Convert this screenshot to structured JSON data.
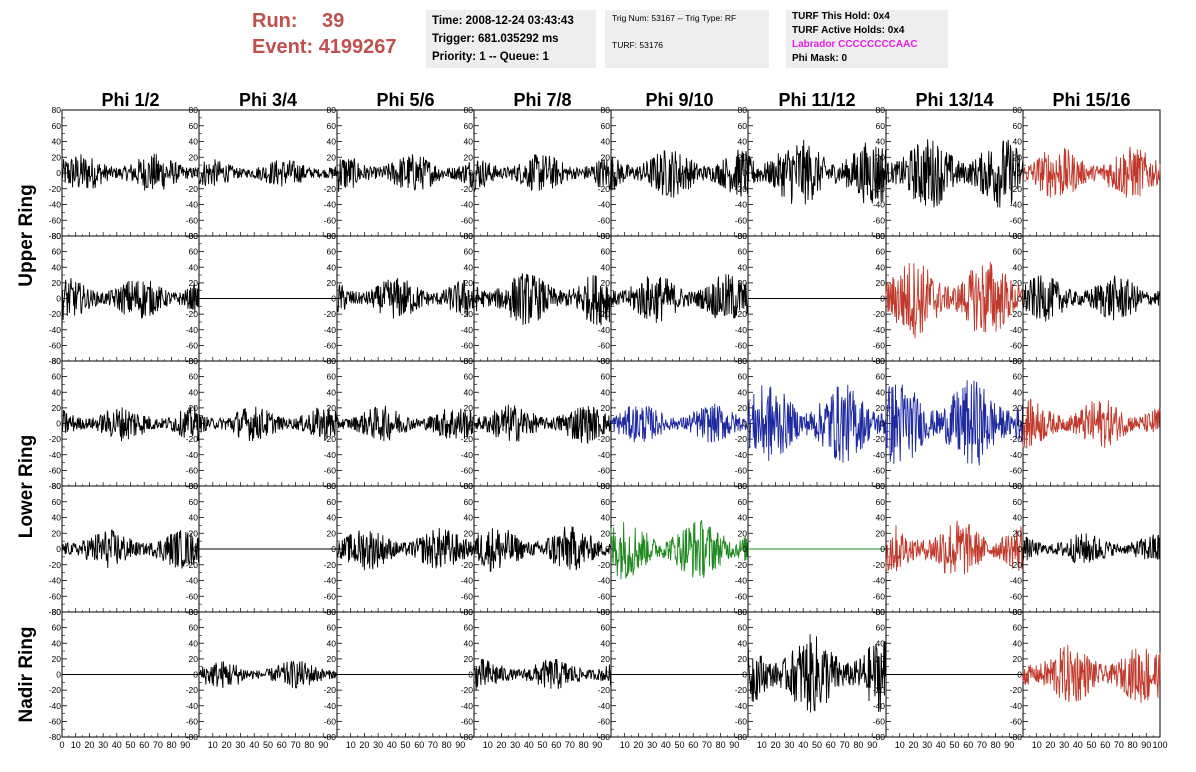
{
  "header": {
    "run_label": "Run:",
    "run_value": "39",
    "event_label": "Event:",
    "event_value": "4199267",
    "time_text": "Time: 2008-12-24 03:43:43",
    "trigger_text": "Trigger: 681.035292 ms",
    "priority_text": "Priority: 1 -- Queue: 1",
    "trig_num_text": "Trig Num: 53167 -- Trig Type: RF",
    "turf_text": "TURF: 53176",
    "turf_hold_text": "TURF This Hold: 0x4",
    "turf_active_text": "TURF Active Holds: 0x4",
    "labrador_text": "Labrador CCCCCCCCAAC",
    "phimask_text": "Phi Mask: 0"
  },
  "colors": {
    "header_red": "#c0504d",
    "magenta": "#e020e0",
    "black": "#000000",
    "red": "#c0392b",
    "blue": "#1f2aa0",
    "green": "#1e8a1e",
    "info_bg": "#eeeeee"
  },
  "chart_data": {
    "type": "line",
    "columns": [
      "Phi 1/2",
      "Phi 3/4",
      "Phi 5/6",
      "Phi 7/8",
      "Phi 9/10",
      "Phi 11/12",
      "Phi 13/14",
      "Phi 15/16"
    ],
    "row_groups": [
      {
        "label": "Upper Ring",
        "rows": [
          0,
          1
        ]
      },
      {
        "label": "Lower Ring",
        "rows": [
          2,
          3
        ]
      },
      {
        "label": "Nadir Ring",
        "rows": [
          4
        ]
      }
    ],
    "xlim": [
      0,
      100
    ],
    "ylim": [
      -80,
      80
    ],
    "x_tick_labels": [
      "0",
      "10",
      "20",
      "30",
      "40",
      "50",
      "60",
      "70",
      "80",
      "90",
      "100"
    ],
    "y_tick_labels": [
      "80",
      "60",
      "40",
      "20",
      "0",
      "-20",
      "-40",
      "-60",
      "-80"
    ],
    "panels": [
      [
        {
          "color": "black",
          "amp": 22,
          "flat": false
        },
        {
          "color": "black",
          "amp": 16,
          "flat": false
        },
        {
          "color": "black",
          "amp": 22,
          "flat": false
        },
        {
          "color": "black",
          "amp": 22,
          "flat": false
        },
        {
          "color": "black",
          "amp": 28,
          "flat": false
        },
        {
          "color": "black",
          "amp": 38,
          "flat": false
        },
        {
          "color": "black",
          "amp": 40,
          "flat": false
        },
        {
          "color": "red",
          "amp": 30,
          "flat": false
        }
      ],
      [
        {
          "color": "black",
          "amp": 24,
          "flat": false
        },
        {
          "color": "black",
          "amp": 0,
          "flat": true
        },
        {
          "color": "black",
          "amp": 24,
          "flat": false
        },
        {
          "color": "black",
          "amp": 30,
          "flat": false
        },
        {
          "color": "black",
          "amp": 28,
          "flat": false
        },
        {
          "color": "black",
          "amp": 0,
          "flat": true
        },
        {
          "color": "red",
          "amp": 45,
          "flat": false
        },
        {
          "color": "black",
          "amp": 26,
          "flat": false
        }
      ],
      [
        {
          "color": "black",
          "amp": 20,
          "flat": false
        },
        {
          "color": "black",
          "amp": 20,
          "flat": false
        },
        {
          "color": "black",
          "amp": 20,
          "flat": false
        },
        {
          "color": "black",
          "amp": 22,
          "flat": false
        },
        {
          "color": "blue",
          "amp": 22,
          "flat": false
        },
        {
          "color": "blue",
          "amp": 45,
          "flat": false
        },
        {
          "color": "blue",
          "amp": 50,
          "flat": false
        },
        {
          "color": "red",
          "amp": 28,
          "flat": false
        }
      ],
      [
        {
          "color": "black",
          "amp": 22,
          "flat": false
        },
        {
          "color": "black",
          "amp": 0,
          "flat": true
        },
        {
          "color": "black",
          "amp": 24,
          "flat": false
        },
        {
          "color": "black",
          "amp": 26,
          "flat": false
        },
        {
          "color": "green",
          "amp": 34,
          "flat": false
        },
        {
          "color": "green",
          "amp": 0,
          "flat": true
        },
        {
          "color": "red",
          "amp": 34,
          "flat": false
        },
        {
          "color": "black",
          "amp": 18,
          "flat": false
        }
      ],
      [
        {
          "color": "black",
          "amp": 0,
          "flat": true
        },
        {
          "color": "black",
          "amp": 16,
          "flat": false
        },
        {
          "color": "black",
          "amp": 0,
          "flat": true
        },
        {
          "color": "black",
          "amp": 18,
          "flat": false
        },
        {
          "color": "black",
          "amp": 0,
          "flat": true
        },
        {
          "color": "black",
          "amp": 45,
          "flat": false
        },
        {
          "color": "black",
          "amp": 0,
          "flat": true
        },
        {
          "color": "red",
          "amp": 34,
          "flat": false
        }
      ]
    ]
  }
}
